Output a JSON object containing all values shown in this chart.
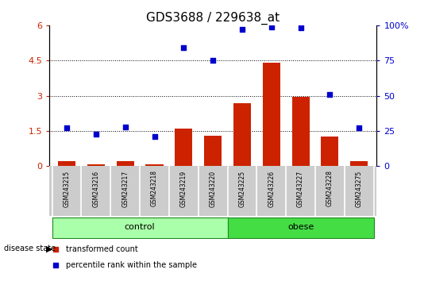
{
  "title": "GDS3688 / 229638_at",
  "samples": [
    "GSM243215",
    "GSM243216",
    "GSM243217",
    "GSM243218",
    "GSM243219",
    "GSM243220",
    "GSM243225",
    "GSM243226",
    "GSM243227",
    "GSM243228",
    "GSM243275"
  ],
  "red_bars": [
    0.21,
    0.07,
    0.21,
    0.07,
    1.6,
    1.3,
    2.7,
    4.4,
    2.97,
    1.25,
    0.21
  ],
  "blue_dots_pct": [
    27,
    23,
    28,
    21,
    84,
    75,
    97,
    99,
    98,
    51,
    27
  ],
  "n_control": 6,
  "n_obese": 5,
  "ylim_left": [
    0,
    6
  ],
  "ylim_right": [
    0,
    100
  ],
  "yticks_left": [
    0,
    1.5,
    3.0,
    4.5,
    6.0
  ],
  "yticks_right": [
    0,
    25,
    50,
    75,
    100
  ],
  "bar_color": "#cc2200",
  "dot_color": "#0000cc",
  "control_color": "#aaffaa",
  "obese_color": "#44dd44",
  "label_bg_color": "#cccccc",
  "title_fontsize": 11,
  "legend_red_label": "transformed count",
  "legend_blue_label": "percentile rank within the sample",
  "dotted_gridlines": [
    1.5,
    3.0,
    4.5
  ]
}
